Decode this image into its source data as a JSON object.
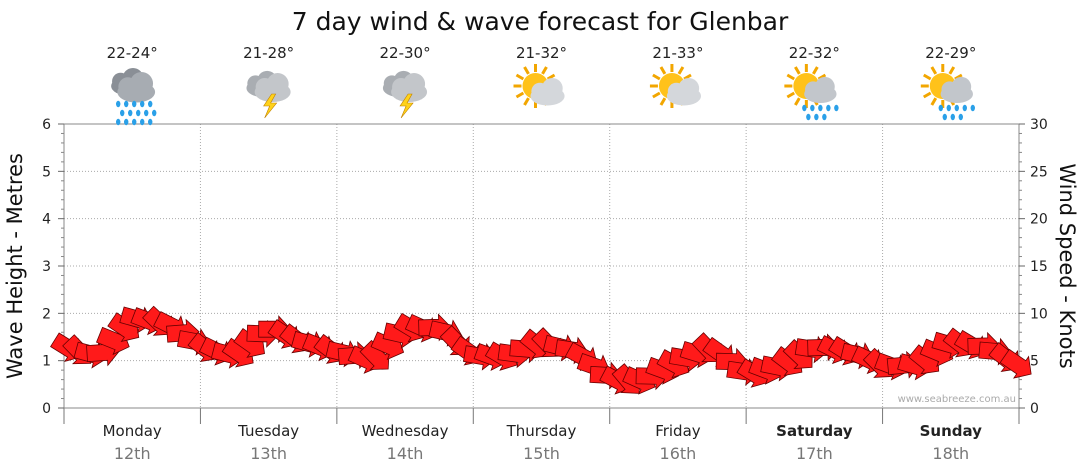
{
  "chart_data": {
    "type": "line",
    "title": "7 day wind & wave forecast for Glenbar",
    "ylabel_left": "Wave Height - Metres",
    "ylabel_right": "Wind Speed - Knots",
    "ylim_left": [
      0,
      6
    ],
    "ylim_right": [
      0,
      30
    ],
    "yticks_left": [
      "0",
      "1",
      "2",
      "3",
      "4",
      "5",
      "6"
    ],
    "yticks_right": [
      "0",
      "5",
      "10",
      "15",
      "20",
      "25",
      "30"
    ],
    "grid": true,
    "watermark": "www.seabreeze.com.au",
    "days": [
      {
        "name": "Monday",
        "date": "12th",
        "temp": "22-24°",
        "icon": "rain-cloud-icon",
        "bold": false
      },
      {
        "name": "Tuesday",
        "date": "13th",
        "temp": "21-28°",
        "icon": "storm-cloud-icon",
        "bold": false
      },
      {
        "name": "Wednesday",
        "date": "14th",
        "temp": "22-30°",
        "icon": "storm-cloud-icon",
        "bold": false
      },
      {
        "name": "Thursday",
        "date": "15th",
        "temp": "21-32°",
        "icon": "sun-cloud-icon",
        "bold": false
      },
      {
        "name": "Friday",
        "date": "16th",
        "temp": "21-33°",
        "icon": "sun-cloud-icon",
        "bold": false
      },
      {
        "name": "Saturday",
        "date": "17th",
        "temp": "22-32°",
        "icon": "sun-shower-icon",
        "bold": true
      },
      {
        "name": "Sunday",
        "date": "18th",
        "temp": "22-29°",
        "icon": "sun-shower-icon",
        "bold": true
      }
    ],
    "wind_series": {
      "name": "Wind Speed",
      "unit": "knots",
      "x_days": [
        0.0,
        0.25,
        0.5,
        0.75,
        1.0,
        1.25,
        1.5,
        1.75,
        2.0,
        2.25,
        2.5,
        2.75,
        3.0,
        3.25,
        3.5,
        3.75,
        4.0,
        4.25,
        4.5,
        4.75,
        5.0,
        5.25,
        5.5,
        5.75,
        6.0,
        6.25,
        6.5,
        6.75,
        7.0
      ],
      "values": [
        6.5,
        5.5,
        9.5,
        9.0,
        6.5,
        5.5,
        8.5,
        7.0,
        6.0,
        5.0,
        8.5,
        8.5,
        5.5,
        5.5,
        7.0,
        6.0,
        3.0,
        3.0,
        5.0,
        6.5,
        3.5,
        4.5,
        6.5,
        6.0,
        4.5,
        4.5,
        7.0,
        6.5,
        4.5
      ]
    }
  }
}
